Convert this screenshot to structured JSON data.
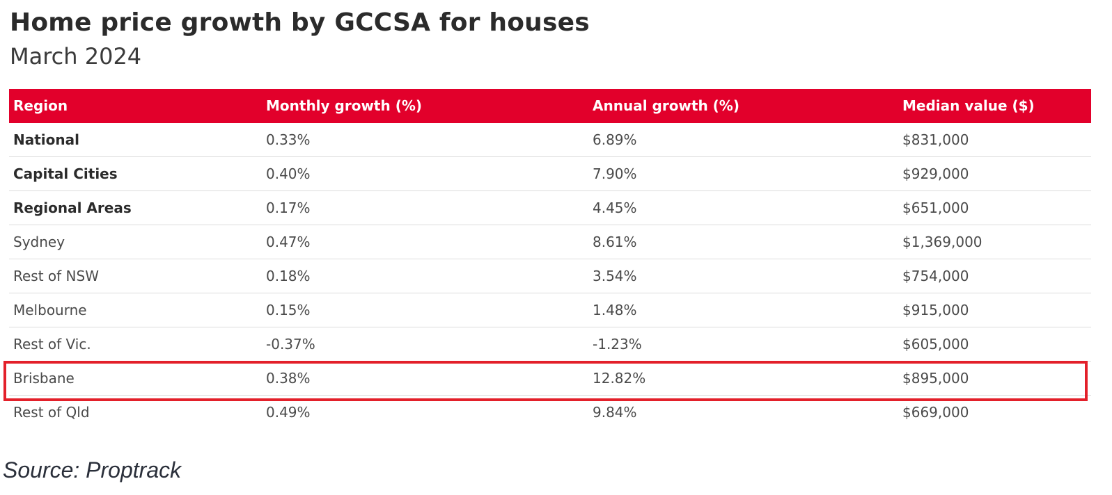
{
  "chart_data": {
    "type": "table",
    "title": "Home price growth by GCCSA for houses",
    "subtitle": "March 2024",
    "columns": [
      "Region",
      "Monthly growth (%)",
      "Annual growth (%)",
      "Median value ($)"
    ],
    "rows": [
      {
        "region": "National",
        "monthly": "0.33%",
        "annual": "6.89%",
        "median": "$831,000",
        "bold": true
      },
      {
        "region": "Capital Cities",
        "monthly": "0.40%",
        "annual": "7.90%",
        "median": "$929,000",
        "bold": true
      },
      {
        "region": "Regional Areas",
        "monthly": "0.17%",
        "annual": "4.45%",
        "median": "$651,000",
        "bold": true
      },
      {
        "region": "Sydney",
        "monthly": "0.47%",
        "annual": "8.61%",
        "median": "$1,369,000",
        "bold": false
      },
      {
        "region": "Rest of NSW",
        "monthly": "0.18%",
        "annual": "3.54%",
        "median": "$754,000",
        "bold": false
      },
      {
        "region": "Melbourne",
        "monthly": "0.15%",
        "annual": "1.48%",
        "median": "$915,000",
        "bold": false
      },
      {
        "region": "Rest of Vic.",
        "monthly": "-0.37%",
        "annual": "-1.23%",
        "median": "$605,000",
        "bold": false
      },
      {
        "region": "Brisbane",
        "monthly": "0.38%",
        "annual": "12.82%",
        "median": "$895,000",
        "bold": false,
        "highlighted": true
      },
      {
        "region": "Rest of Qld",
        "monthly": "0.49%",
        "annual": "9.84%",
        "median": "$669,000",
        "bold": false
      }
    ],
    "source": "Source: Proptrack",
    "colors": {
      "header_background": "#e2002b",
      "header_text": "#ffffff",
      "highlight_border": "#e3202a"
    }
  }
}
